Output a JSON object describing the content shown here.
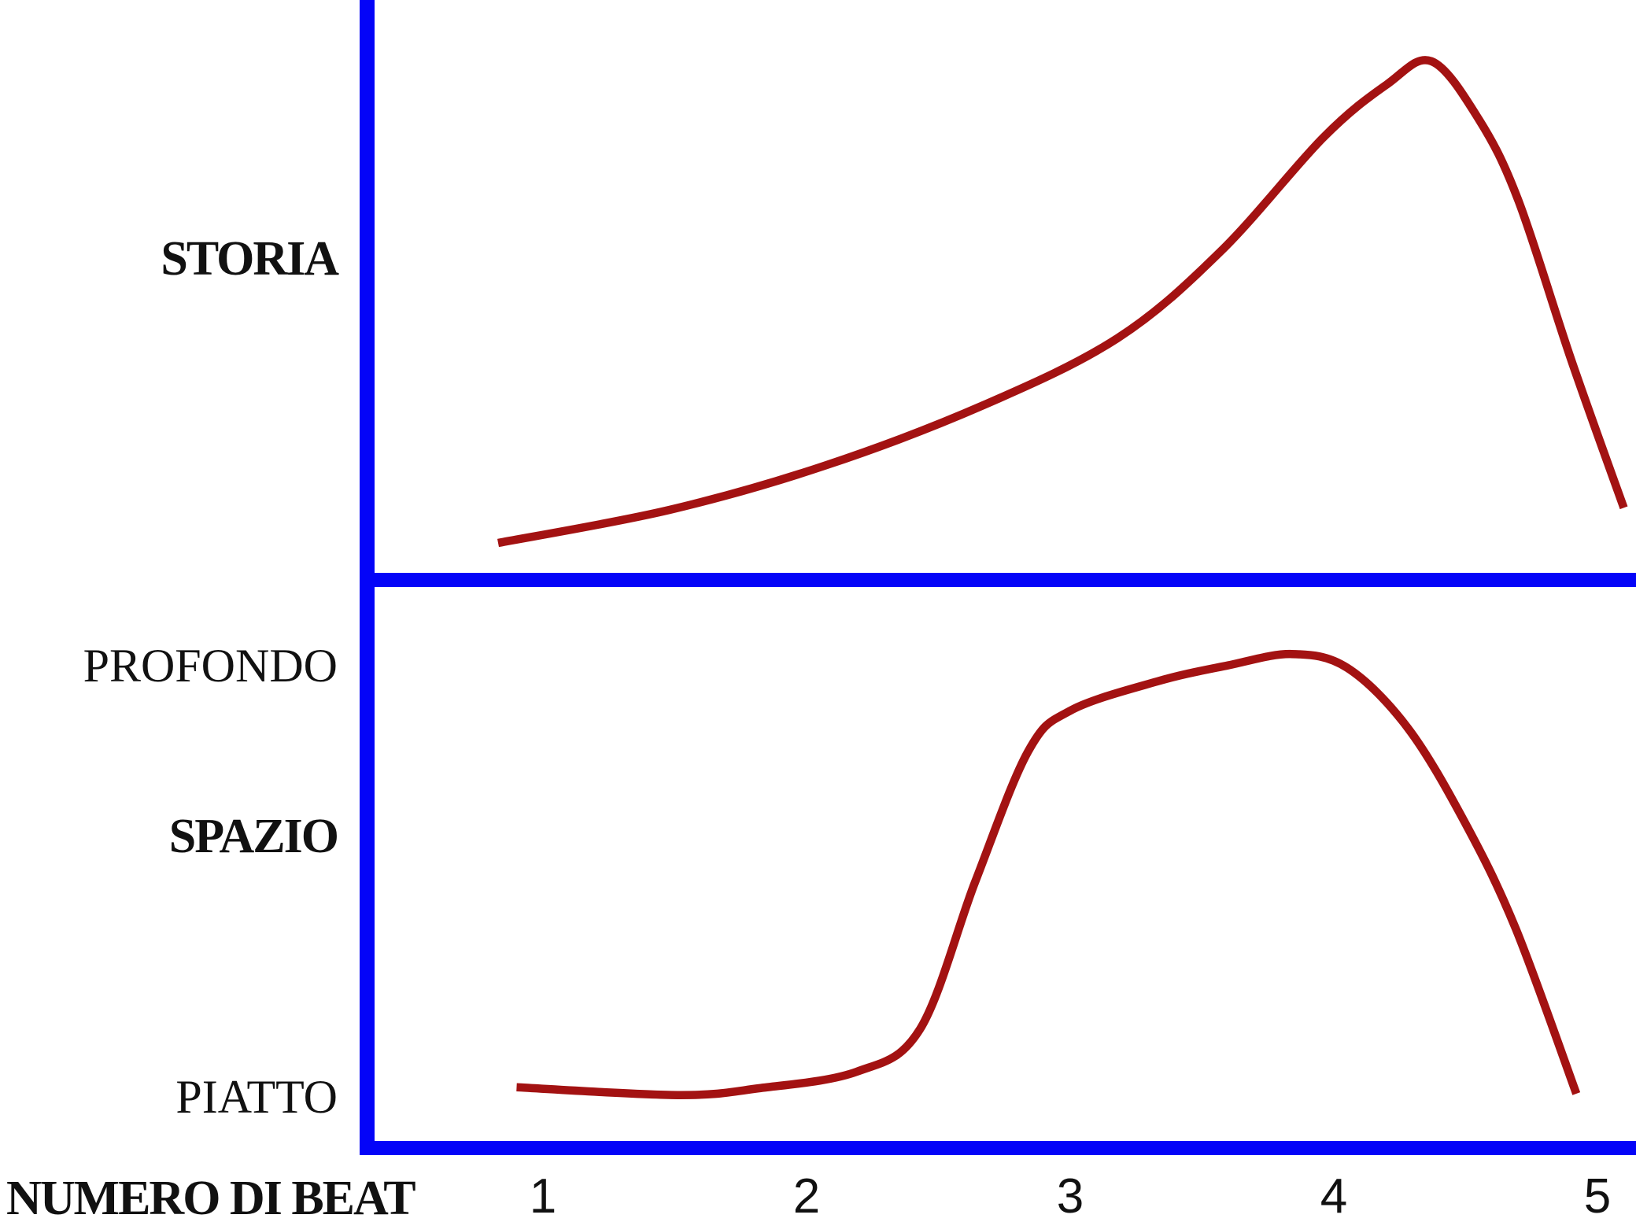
{
  "colors": {
    "background": "#ffffff",
    "axis": "#0404f8",
    "curve": "#a31212",
    "text": "#111111"
  },
  "chart_data": {
    "type": "line",
    "title": "",
    "x_axis": {
      "label": "NUMERO DI BEAT",
      "ticks": [
        "1",
        "2",
        "3",
        "4",
        "5"
      ],
      "range": [
        0.8,
        5.1
      ]
    },
    "panels": [
      {
        "name": "storia",
        "ylabel": "STORIA",
        "value_range": [
          0,
          100
        ],
        "grid": false,
        "series": [
          {
            "name": "story-tension-curve",
            "points_beat_value": [
              [
                0.83,
                5.6
              ],
              [
                1.48,
                11.8
              ],
              [
                2.07,
                20.1
              ],
              [
                2.67,
                31.4
              ],
              [
                3.18,
                44.0
              ],
              [
                3.57,
                60.2
              ],
              [
                3.96,
                81.6
              ],
              [
                4.2,
                91.5
              ],
              [
                4.37,
                95.9
              ],
              [
                4.55,
                85.0
              ],
              [
                4.7,
                69.8
              ],
              [
                4.9,
                40.0
              ],
              [
                5.1,
                12.2
              ]
            ]
          }
        ]
      },
      {
        "name": "spazio",
        "ylabel": "SPAZIO",
        "value_range": [
          0,
          100
        ],
        "grid": false,
        "y_annotations": [
          {
            "label": "PROFONDO",
            "value": 97
          },
          {
            "label": "PIATTO",
            "value": 8
          }
        ],
        "series": [
          {
            "name": "space-depth-curve",
            "points_beat_value": [
              [
                0.9,
                11.0
              ],
              [
                1.51,
                9.4
              ],
              [
                1.82,
                10.8
              ],
              [
                2.19,
                14.2
              ],
              [
                2.43,
                22.9
              ],
              [
                2.64,
                53.2
              ],
              [
                2.84,
                79.8
              ],
              [
                3.0,
                88.2
              ],
              [
                3.33,
                94.2
              ],
              [
                3.6,
                97.5
              ],
              [
                3.84,
                99.8
              ],
              [
                4.05,
                97.0
              ],
              [
                4.28,
                84.7
              ],
              [
                4.5,
                65.0
              ],
              [
                4.69,
                43.5
              ],
              [
                4.92,
                9.7
              ]
            ]
          }
        ]
      }
    ]
  }
}
